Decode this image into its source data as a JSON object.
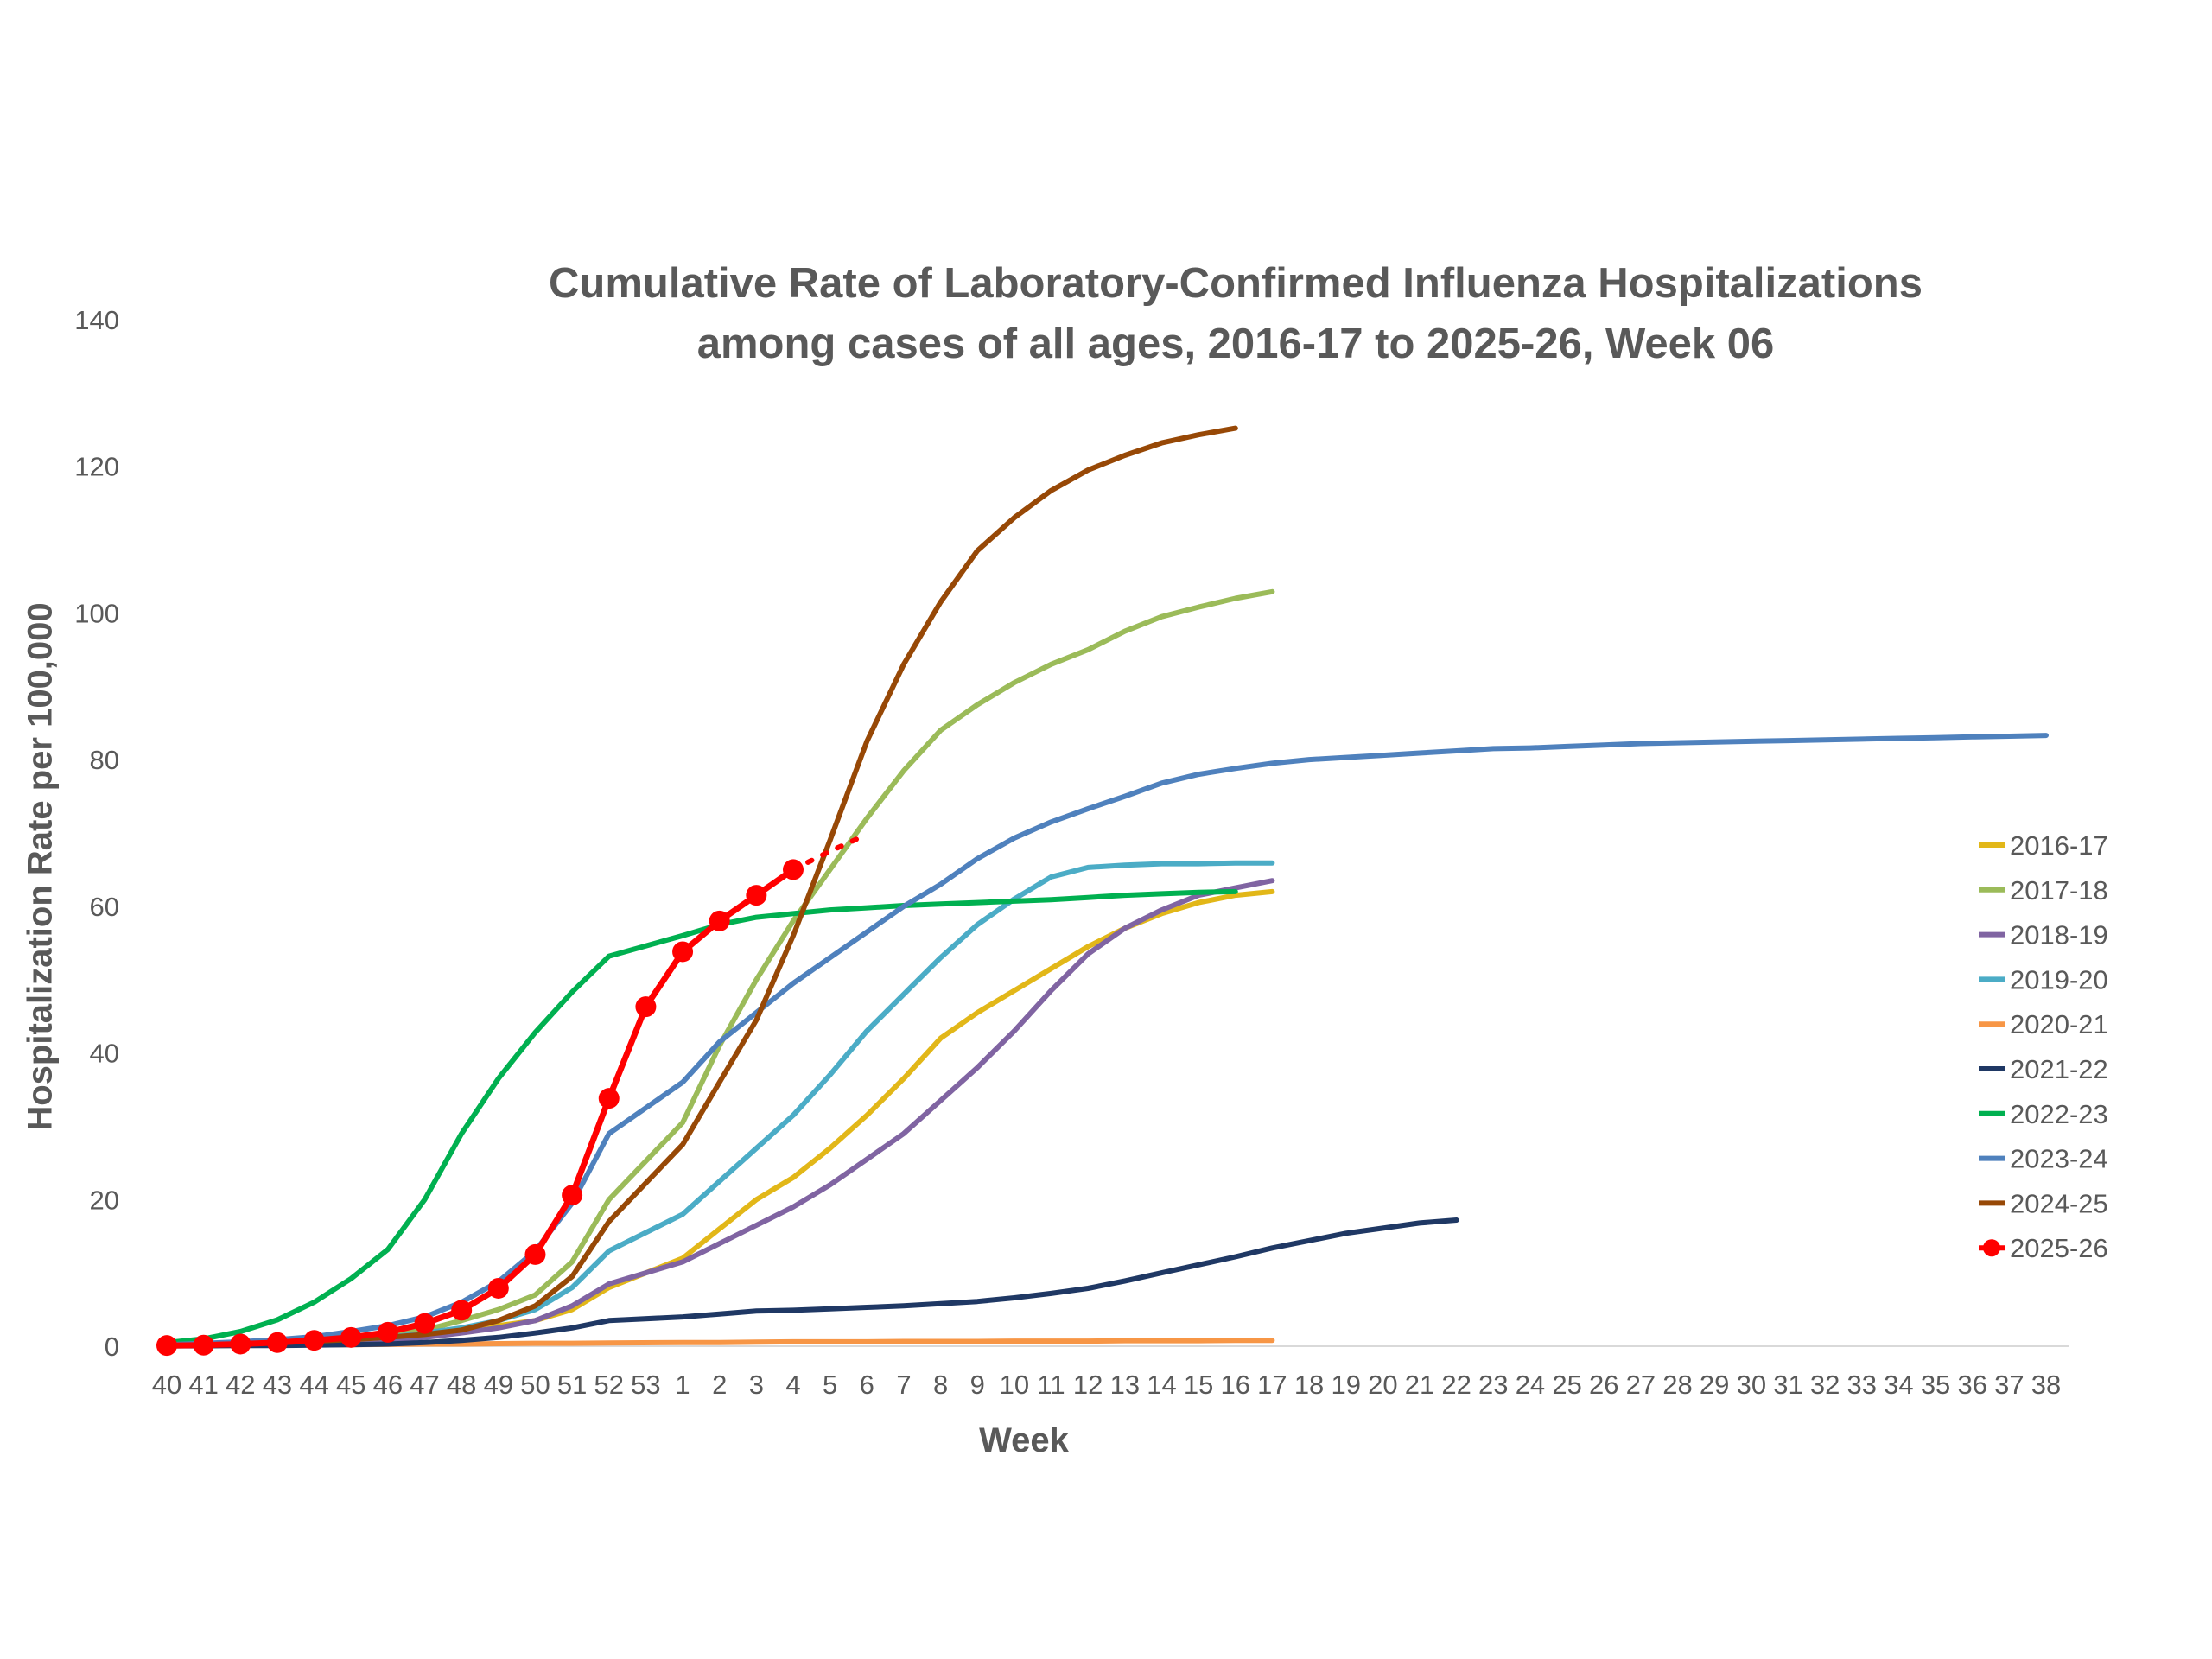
{
  "chart_data": {
    "type": "line",
    "title_lines": [
      "Cumulative Rate of Laboratory-Confirmed Influenza Hospitalizations",
      "among cases of all ages, 2016-17 to 2025-26, Week 06"
    ],
    "xlabel": "Week",
    "ylabel": "Hospitalization Rate per 100,000",
    "ylim": [
      0,
      140
    ],
    "yticks": [
      0,
      20,
      40,
      60,
      80,
      100,
      120,
      140
    ],
    "grid": false,
    "legend_position": "right",
    "categories": [
      "40",
      "41",
      "42",
      "43",
      "44",
      "45",
      "46",
      "47",
      "48",
      "49",
      "50",
      "51",
      "52",
      "53",
      "1",
      "2",
      "3",
      "4",
      "5",
      "6",
      "7",
      "8",
      "9",
      "10",
      "11",
      "12",
      "13",
      "14",
      "15",
      "16",
      "17",
      "18",
      "19",
      "20",
      "21",
      "22",
      "23",
      "24",
      "25",
      "26",
      "27",
      "28",
      "29",
      "30",
      "31",
      "32",
      "33",
      "34",
      "35",
      "36",
      "37",
      "38"
    ],
    "series": [
      {
        "name": "2016-17",
        "color": "#E2B718",
        "x": [
          "40",
          "41",
          "42",
          "43",
          "44",
          "45",
          "46",
          "47",
          "48",
          "49",
          "50",
          "51",
          "52",
          "1",
          "2",
          "3",
          "4",
          "5",
          "6",
          "7",
          "8",
          "9",
          "10",
          "11",
          "12",
          "13",
          "14",
          "15",
          "16",
          "17"
        ],
        "values": [
          0.1,
          0.2,
          0.3,
          0.4,
          0.6,
          0.8,
          1.0,
          1.5,
          2.0,
          2.8,
          3.5,
          5.0,
          8.0,
          12.0,
          16.0,
          20.0,
          23.0,
          27.0,
          31.5,
          36.5,
          42.0,
          45.5,
          48.5,
          51.5,
          54.5,
          57.0,
          59.0,
          60.5,
          61.5,
          62.0
        ]
      },
      {
        "name": "2017-18",
        "color": "#9BBB59",
        "x": [
          "40",
          "41",
          "42",
          "43",
          "44",
          "45",
          "46",
          "47",
          "48",
          "49",
          "50",
          "51",
          "52",
          "1",
          "2",
          "3",
          "4",
          "5",
          "6",
          "7",
          "8",
          "9",
          "10",
          "11",
          "12",
          "13",
          "14",
          "15",
          "16",
          "17"
        ],
        "values": [
          0.1,
          0.2,
          0.4,
          0.6,
          0.9,
          1.2,
          1.6,
          2.2,
          3.5,
          5.0,
          7.0,
          11.5,
          20.0,
          30.5,
          41.0,
          50.0,
          58.0,
          65.0,
          72.0,
          78.5,
          84.0,
          87.5,
          90.5,
          93.0,
          95.0,
          97.5,
          99.5,
          100.8,
          102.0,
          102.9
        ]
      },
      {
        "name": "2018-19",
        "color": "#8064A2",
        "x": [
          "40",
          "41",
          "42",
          "43",
          "44",
          "45",
          "46",
          "47",
          "48",
          "49",
          "50",
          "51",
          "52",
          "1",
          "2",
          "3",
          "4",
          "5",
          "6",
          "7",
          "8",
          "9",
          "10",
          "11",
          "12",
          "13",
          "14",
          "15",
          "16",
          "17"
        ],
        "values": [
          0.1,
          0.2,
          0.3,
          0.4,
          0.5,
          0.7,
          0.9,
          1.2,
          1.8,
          2.5,
          3.5,
          5.5,
          8.5,
          11.5,
          14.0,
          16.5,
          19.0,
          22.0,
          25.5,
          29.0,
          33.5,
          38.0,
          43.0,
          48.5,
          53.5,
          57.0,
          59.5,
          61.5,
          62.5,
          63.5
        ]
      },
      {
        "name": "2019-20",
        "color": "#4BACC6",
        "x": [
          "40",
          "41",
          "42",
          "43",
          "44",
          "45",
          "46",
          "47",
          "48",
          "49",
          "50",
          "51",
          "52",
          "1",
          "2",
          "3",
          "4",
          "5",
          "6",
          "7",
          "8",
          "9",
          "10",
          "11",
          "12",
          "13",
          "14",
          "15",
          "16",
          "17"
        ],
        "values": [
          0.1,
          0.2,
          0.3,
          0.5,
          0.7,
          0.9,
          1.2,
          1.8,
          2.5,
          3.5,
          5.0,
          8.0,
          13.0,
          18.0,
          22.5,
          27.0,
          31.5,
          37.0,
          43.0,
          48.0,
          53.0,
          57.5,
          61.0,
          64.0,
          65.3,
          65.6,
          65.8,
          65.8,
          65.9,
          65.9
        ]
      },
      {
        "name": "2020-21",
        "color": "#F79646",
        "x": [
          "40",
          "41",
          "42",
          "43",
          "44",
          "45",
          "46",
          "47",
          "48",
          "49",
          "50",
          "51",
          "52",
          "1",
          "2",
          "3",
          "4",
          "5",
          "6",
          "7",
          "8",
          "9",
          "10",
          "11",
          "12",
          "13",
          "14",
          "15",
          "16",
          "17"
        ],
        "values": [
          0.05,
          0.1,
          0.1,
          0.15,
          0.2,
          0.2,
          0.25,
          0.3,
          0.3,
          0.35,
          0.4,
          0.4,
          0.45,
          0.5,
          0.5,
          0.55,
          0.6,
          0.6,
          0.6,
          0.65,
          0.65,
          0.65,
          0.7,
          0.7,
          0.7,
          0.75,
          0.75,
          0.75,
          0.8,
          0.8
        ]
      },
      {
        "name": "2021-22",
        "color": "#1F3864",
        "x": [
          "40",
          "41",
          "42",
          "43",
          "44",
          "45",
          "46",
          "47",
          "48",
          "49",
          "50",
          "51",
          "52",
          "1",
          "2",
          "3",
          "4",
          "5",
          "6",
          "7",
          "8",
          "9",
          "10",
          "11",
          "12",
          "13",
          "14",
          "15",
          "16",
          "17",
          "18",
          "19",
          "20",
          "21",
          "22"
        ],
        "values": [
          0.05,
          0.05,
          0.1,
          0.1,
          0.15,
          0.2,
          0.3,
          0.5,
          0.8,
          1.2,
          1.8,
          2.5,
          3.5,
          4.0,
          4.4,
          4.8,
          4.9,
          5.1,
          5.3,
          5.5,
          5.8,
          6.1,
          6.6,
          7.2,
          7.9,
          8.9,
          10.0,
          11.1,
          12.2,
          13.4,
          14.4,
          15.4,
          16.1,
          16.8,
          17.2
        ]
      },
      {
        "name": "2022-23",
        "color": "#00B050",
        "x": [
          "40",
          "41",
          "42",
          "43",
          "44",
          "45",
          "46",
          "47",
          "48",
          "49",
          "50",
          "51",
          "52",
          "1",
          "2",
          "3",
          "4",
          "5",
          "6",
          "7",
          "8",
          "9",
          "10",
          "11",
          "12",
          "13",
          "14",
          "15",
          "16"
        ],
        "values": [
          0.5,
          1.0,
          2.0,
          3.6,
          6.0,
          9.2,
          13.2,
          20.0,
          29.0,
          36.5,
          42.8,
          48.3,
          53.2,
          56.0,
          57.5,
          58.5,
          59.0,
          59.5,
          59.8,
          60.1,
          60.3,
          60.5,
          60.7,
          60.9,
          61.2,
          61.5,
          61.7,
          61.9,
          62.0
        ]
      },
      {
        "name": "2023-24",
        "color": "#4F81BD",
        "x": [
          "40",
          "41",
          "42",
          "43",
          "44",
          "45",
          "46",
          "47",
          "48",
          "49",
          "50",
          "51",
          "52",
          "1",
          "2",
          "3",
          "4",
          "5",
          "6",
          "7",
          "8",
          "9",
          "10",
          "11",
          "12",
          "13",
          "14",
          "15",
          "16",
          "17",
          "18",
          "19",
          "20",
          "21",
          "22",
          "23",
          "24",
          "25",
          "26",
          "27",
          "28",
          "29",
          "30",
          "31",
          "32",
          "33",
          "34",
          "35",
          "36",
          "37",
          "38"
        ],
        "values": [
          0.2,
          0.4,
          0.6,
          0.9,
          1.3,
          2.0,
          2.8,
          4.0,
          6.0,
          8.8,
          13.0,
          19.5,
          29.0,
          36.0,
          41.5,
          45.5,
          49.5,
          53.0,
          56.5,
          60.0,
          63.0,
          66.5,
          69.3,
          71.5,
          73.3,
          75.0,
          76.8,
          78.0,
          78.8,
          79.5,
          80.0,
          80.3,
          80.6,
          80.9,
          81.2,
          81.5,
          81.6,
          81.8,
          82.0,
          82.2,
          82.3,
          82.4,
          82.5,
          82.6,
          82.7,
          82.8,
          82.9,
          83.0,
          83.1,
          83.2,
          83.3
        ]
      },
      {
        "name": "2024-25",
        "color": "#974806",
        "x": [
          "40",
          "41",
          "42",
          "43",
          "44",
          "45",
          "46",
          "47",
          "48",
          "49",
          "50",
          "51",
          "52",
          "1",
          "2",
          "3",
          "4",
          "5",
          "6",
          "7",
          "8",
          "9",
          "10",
          "11",
          "12",
          "13",
          "14",
          "15",
          "16"
        ],
        "values": [
          0.1,
          0.2,
          0.3,
          0.5,
          0.7,
          0.9,
          1.2,
          1.6,
          2.2,
          3.5,
          5.5,
          9.5,
          17.0,
          27.5,
          36.0,
          44.5,
          56.0,
          69.0,
          82.5,
          93.0,
          101.5,
          108.5,
          113.0,
          116.7,
          119.5,
          121.5,
          123.2,
          124.3,
          125.2
        ]
      },
      {
        "name": "2025-26",
        "color": "#FF0000",
        "x": [
          "40",
          "41",
          "42",
          "43",
          "44",
          "45",
          "46",
          "47",
          "48",
          "49",
          "50",
          "51",
          "52",
          "53",
          "1",
          "2",
          "3",
          "4"
        ],
        "values": [
          0.1,
          0.15,
          0.3,
          0.5,
          0.8,
          1.2,
          1.9,
          3.1,
          4.9,
          7.9,
          12.5,
          20.6,
          33.8,
          46.3,
          53.8,
          58.0,
          61.5,
          65.0
        ],
        "projection_x": [
          "4",
          "5",
          "6"
        ],
        "projection_values": [
          65.0,
          67.5,
          69.8
        ]
      }
    ]
  }
}
